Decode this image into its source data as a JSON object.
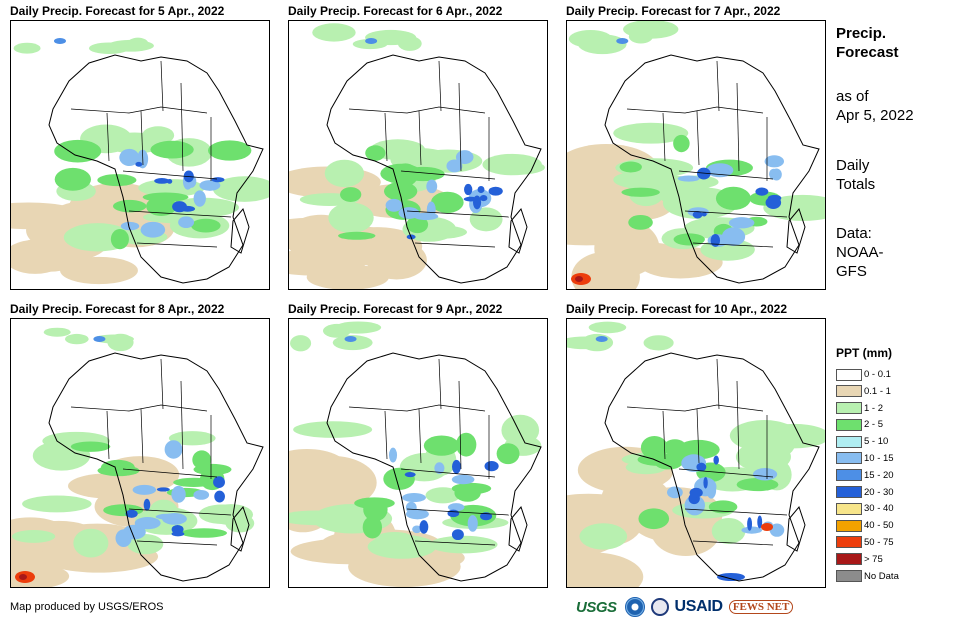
{
  "panels": [
    {
      "title": "Daily Precip. Forecast for 5 Apr., 2022"
    },
    {
      "title": "Daily Precip. Forecast for 6 Apr., 2022"
    },
    {
      "title": "Daily Precip. Forecast for 7 Apr., 2022"
    },
    {
      "title": "Daily Precip. Forecast for 8 Apr., 2022"
    },
    {
      "title": "Daily Precip. Forecast for 9 Apr., 2022"
    },
    {
      "title": "Daily Precip. Forecast for 10 Apr., 2022"
    }
  ],
  "sidebar": {
    "title_line1": "Precip.",
    "title_line2": "Forecast",
    "asof_line1": "as of",
    "asof_line2": "Apr 5, 2022",
    "totals_line1": "Daily",
    "totals_line2": "Totals",
    "data_line1": "Data:",
    "data_line2": "NOAA-",
    "data_line3": "GFS"
  },
  "legend": {
    "title": "PPT (mm)",
    "items": [
      {
        "label": "0 - 0.1",
        "color": "#ffffff"
      },
      {
        "label": "0.1 - 1",
        "color": "#e8d6b4"
      },
      {
        "label": "1 - 2",
        "color": "#b8f0b0"
      },
      {
        "label": "2 - 5",
        "color": "#6ee06e"
      },
      {
        "label": "5 - 10",
        "color": "#b0eef2"
      },
      {
        "label": "10 - 15",
        "color": "#88bdf0"
      },
      {
        "label": "15 - 20",
        "color": "#4d8fe6"
      },
      {
        "label": "20 - 30",
        "color": "#2460d8"
      },
      {
        "label": "30 - 40",
        "color": "#f7e58a"
      },
      {
        "label": "40 - 50",
        "color": "#f3a200"
      },
      {
        "label": "50 - 75",
        "color": "#ec3d0c"
      },
      {
        "label": "> 75",
        "color": "#a81818"
      },
      {
        "label": "No Data",
        "color": "#8c8c8c"
      }
    ]
  },
  "footer": {
    "credit": "Map produced by USGS/EROS",
    "logo_usgs": "USGS",
    "logo_usaid": "USAID",
    "logo_fews": "FEWS NET"
  }
}
